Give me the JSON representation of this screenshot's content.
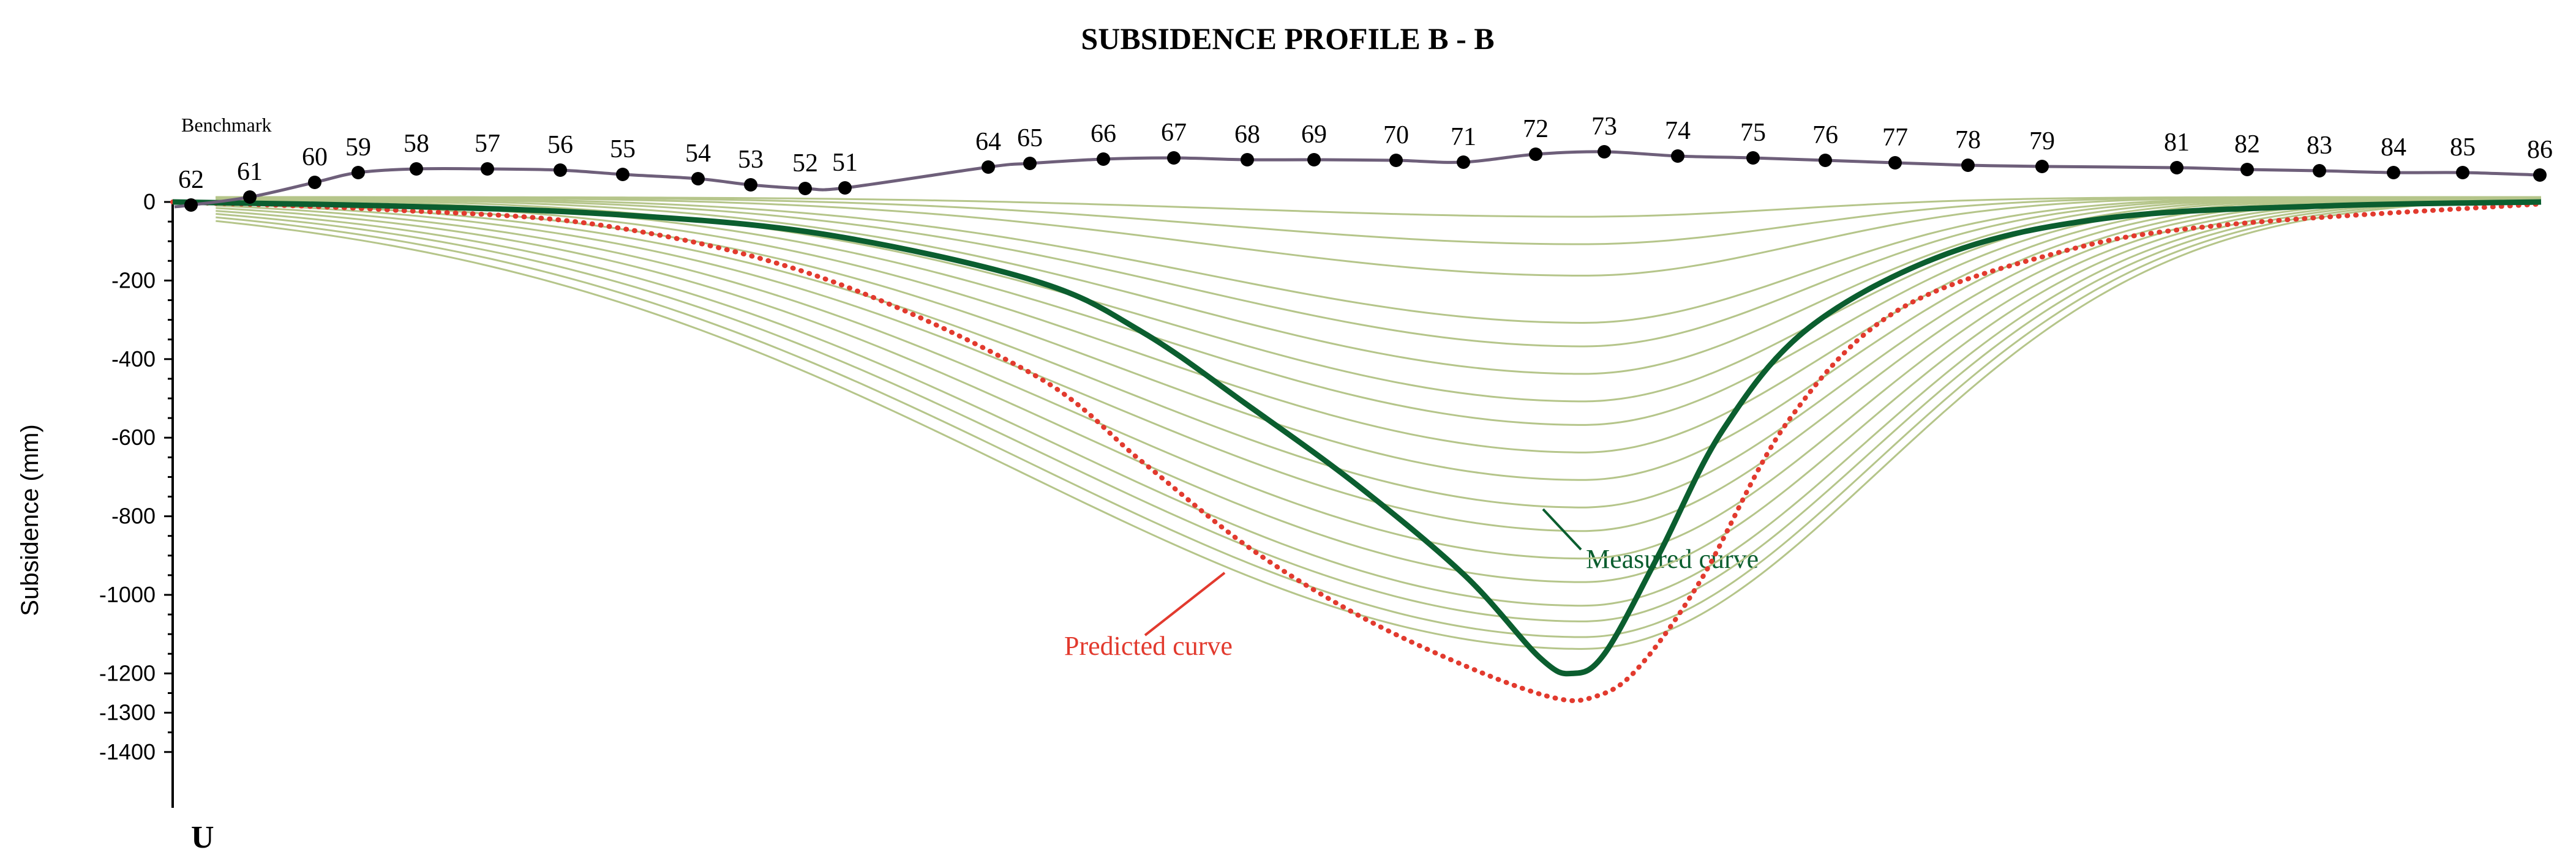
{
  "chart_data": {
    "type": "line",
    "title": "SUBSIDENCE PROFILE    B - B",
    "ylabel": "Subsidence (mm)",
    "ylim": [
      -1400,
      0
    ],
    "yticks": [
      0,
      -200,
      -400,
      -600,
      -800,
      -1000,
      -1200,
      -1300,
      -1400
    ],
    "benchmark_label": "Benchmark",
    "origin_marker": "U",
    "points": [
      "62",
      "61",
      "60",
      "59",
      "58",
      "57",
      "56",
      "55",
      "54",
      "53",
      "52",
      "51",
      "64",
      "65",
      "66",
      "67",
      "68",
      "69",
      "70",
      "71",
      "72",
      "73",
      "74",
      "75",
      "76",
      "77",
      "78",
      "79",
      "81",
      "82",
      "83",
      "84",
      "85",
      "86"
    ],
    "measured_label": "Measured curve",
    "predicted_label": "Predicted curve",
    "measured_curve": [
      [
        -2.0,
        0
      ],
      [
        0.0,
        -10
      ],
      [
        2.0,
        -30
      ],
      [
        4.0,
        -80
      ],
      [
        6.0,
        -200
      ],
      [
        7.0,
        -330
      ],
      [
        8.0,
        -520
      ],
      [
        9.0,
        -720
      ],
      [
        10.0,
        -950
      ],
      [
        10.7,
        -1160
      ],
      [
        11.0,
        -1200
      ],
      [
        11.3,
        -1150
      ],
      [
        11.8,
        -900
      ],
      [
        12.4,
        -580
      ],
      [
        13.2,
        -320
      ],
      [
        14.5,
        -130
      ],
      [
        16.0,
        -40
      ],
      [
        18.0,
        -10
      ],
      [
        20.0,
        0
      ]
    ],
    "predicted_curve": [
      [
        -2.0,
        0
      ],
      [
        0.0,
        -20
      ],
      [
        2.0,
        -60
      ],
      [
        4.0,
        -190
      ],
      [
        6.0,
        -440
      ],
      [
        7.0,
        -660
      ],
      [
        8.0,
        -880
      ],
      [
        9.0,
        -1050
      ],
      [
        10.0,
        -1180
      ],
      [
        10.8,
        -1260
      ],
      [
        11.2,
        -1260
      ],
      [
        11.6,
        -1190
      ],
      [
        12.2,
        -960
      ],
      [
        13.0,
        -560
      ],
      [
        14.0,
        -280
      ],
      [
        15.5,
        -130
      ],
      [
        17.0,
        -60
      ],
      [
        20.0,
        -5
      ]
    ],
    "intermediate_max_depths": [
      -50,
      -120,
      -200,
      -320,
      -380,
      -450,
      -520,
      -580,
      -650,
      -720,
      -790,
      -850,
      -920,
      -980,
      -1040,
      -1080,
      -1120,
      -1150
    ],
    "colors": {
      "measured": "#0b5e2f",
      "predicted": "#e23a2e",
      "intermediate": "#b5c58a",
      "ground": "#6e5f7a",
      "points": "#000000"
    }
  }
}
